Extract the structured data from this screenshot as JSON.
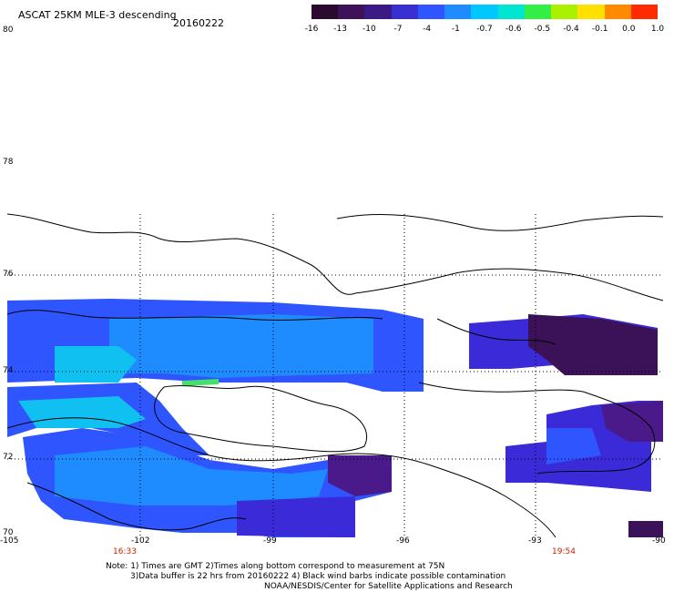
{
  "header": {
    "title": "ASCAT 25KM MLE-3 descending",
    "date": "20160222"
  },
  "colorbar": {
    "labels": [
      "-16",
      "-13",
      "-10",
      "-7",
      "-4",
      "-1",
      "-0.7",
      "-0.6",
      "-0.5",
      "-0.4",
      "-0.1",
      "0.0",
      "1.0"
    ],
    "colors": [
      "#2a0a2e",
      "#3f1257",
      "#3a1a86",
      "#3a2fd0",
      "#2e55ff",
      "#1e8cff",
      "#00c8ff",
      "#00e6d0",
      "#33ee44",
      "#aaf000",
      "#ffe000",
      "#ff8a00",
      "#ff2a00"
    ]
  },
  "map": {
    "lat_labels": [
      "80",
      "78",
      "76",
      "74",
      "72",
      "70"
    ],
    "lon_labels": [
      "-105",
      "-102",
      "-99",
      "-96",
      "-93",
      "-90"
    ],
    "time_labels": [
      "16:33",
      "19:54"
    ],
    "data_colors": {
      "deep_purple": "#3b1157",
      "purple": "#4a1a8a",
      "indigo": "#3a2ad8",
      "blue": "#2f55ff",
      "azure": "#1e8cff",
      "cyan": "#10c0f0",
      "green": "#44e06a"
    }
  },
  "notes": {
    "line1": "Note: 1) Times are GMT 2)Times along bottom correspond to measurement at 75N",
    "line2": "3)Data buffer is 22 hrs from 20160222 4) Black wind barbs indicate possible contamination",
    "line3": "NOAA/NESDIS/Center for Satellite Applications and Research"
  }
}
